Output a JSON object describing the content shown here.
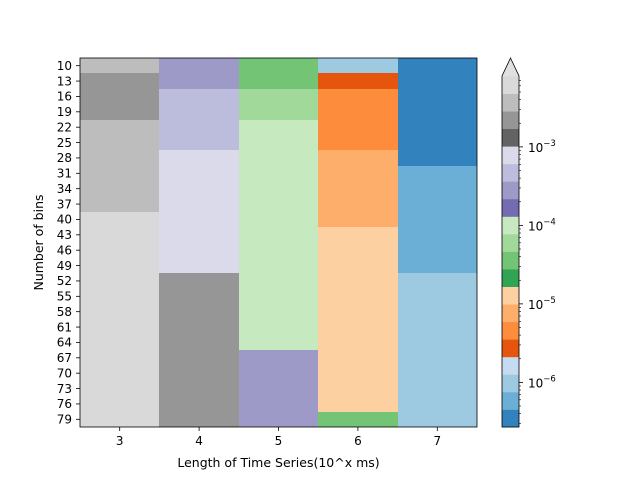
{
  "chart_data": {
    "type": "heatmap",
    "xlabel": "Length of Time Series(10^x ms)",
    "ylabel": "Number of bins",
    "x_categories": [
      "3",
      "4",
      "5",
      "6",
      "7"
    ],
    "y_categories": [
      "10",
      "13",
      "16",
      "19",
      "22",
      "25",
      "28",
      "31",
      "34",
      "37",
      "40",
      "43",
      "46",
      "49",
      "52",
      "55",
      "58",
      "61",
      "64",
      "67",
      "70",
      "73",
      "76",
      "79"
    ],
    "cells": [
      [
        {
          "from": "10",
          "to": "10",
          "value": 0.0034
        },
        {
          "from": "13",
          "to": "19",
          "value": 0.0026
        },
        {
          "from": "22",
          "to": "37",
          "value": 0.0042
        },
        {
          "from": "40",
          "to": "79",
          "value": 0.0062
        }
      ],
      [
        {
          "from": "10",
          "to": "13",
          "value": 0.00035
        },
        {
          "from": "16",
          "to": "25",
          "value": 0.00045
        },
        {
          "from": "28",
          "to": "49",
          "value": 0.00075
        },
        {
          "from": "52",
          "to": "79",
          "value": 0.0018
        }
      ],
      [
        {
          "from": "10",
          "to": "13",
          "value": 3.5e-05
        },
        {
          "from": "16",
          "to": "19",
          "value": 6e-05
        },
        {
          "from": "22",
          "to": "37",
          "value": 8.5e-05
        },
        {
          "from": "40",
          "to": "64",
          "value": 0.00013
        },
        {
          "from": "67",
          "to": "79",
          "value": 0.00024
        }
      ],
      [
        {
          "from": "10",
          "to": "10",
          "value": 1.2e-06
        },
        {
          "from": "13",
          "to": "13",
          "value": 2.8e-06
        },
        {
          "from": "16",
          "to": "25",
          "value": 4.5e-06
        },
        {
          "from": "28",
          "to": "40",
          "value": 7.2e-06
        },
        {
          "from": "43",
          "to": "76",
          "value": 1.1e-05
        },
        {
          "from": "79",
          "to": "79",
          "value": 3.5e-05
        }
      ],
      [
        {
          "from": "10",
          "to": "13",
          "value": 3e-07
        },
        {
          "from": "16",
          "to": "28",
          "value": 4.5e-07
        },
        {
          "from": "31",
          "to": "49",
          "value": 7e-07
        },
        {
          "from": "52",
          "to": "79",
          "value": 1.2e-06
        }
      ]
    ],
    "colorbar": {
      "scale": "log",
      "range": [
        2.7e-07,
        0.008
      ],
      "extend": "max",
      "tick_values": [
        1e-06,
        1e-05,
        0.0001,
        0.001
      ],
      "tick_base": "10",
      "tick_exponents": [
        "−6",
        "−5",
        "−4",
        "−3"
      ],
      "colormap": "tab20c",
      "colors": [
        "#3182bd",
        "#6baed6",
        "#9ecae1",
        "#c6dbef",
        "#e6550d",
        "#fd8d3c",
        "#fdae6b",
        "#fdd0a2",
        "#31a354",
        "#74c476",
        "#a1d99b",
        "#c7e9c0",
        "#756bb1",
        "#9e9ac8",
        "#bcbddc",
        "#dadaeb",
        "#636363",
        "#969696",
        "#bdbdbd",
        "#d9d9d9"
      ]
    }
  }
}
